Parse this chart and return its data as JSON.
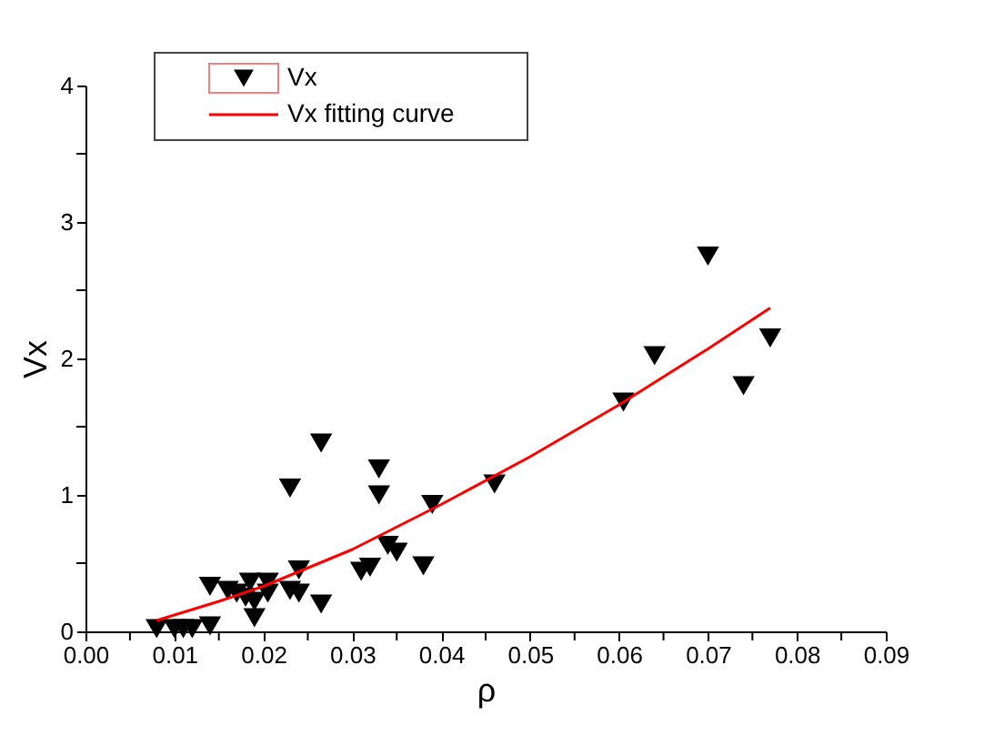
{
  "chart_data": {
    "type": "scatter",
    "xlabel": "ρ",
    "ylabel": "Vx",
    "xlim": [
      0,
      0.09
    ],
    "ylim": [
      0,
      4
    ],
    "xticks": [
      {
        "value": 0,
        "label": "0.00"
      },
      {
        "value": 0.005,
        "label": null
      },
      {
        "value": 0.01,
        "label": "0.01"
      },
      {
        "value": 0.015,
        "label": null
      },
      {
        "value": 0.02,
        "label": "0.02"
      },
      {
        "value": 0.025,
        "label": null
      },
      {
        "value": 0.03,
        "label": "0.03"
      },
      {
        "value": 0.035,
        "label": null
      },
      {
        "value": 0.04,
        "label": "0.04"
      },
      {
        "value": 0.045,
        "label": null
      },
      {
        "value": 0.05,
        "label": "0.05"
      },
      {
        "value": 0.055,
        "label": null
      },
      {
        "value": 0.06,
        "label": "0.06"
      },
      {
        "value": 0.065,
        "label": null
      },
      {
        "value": 0.07,
        "label": "0.07"
      },
      {
        "value": 0.075,
        "label": null
      },
      {
        "value": 0.08,
        "label": "0.08"
      },
      {
        "value": 0.085,
        "label": null
      },
      {
        "value": 0.09,
        "label": "0.09"
      }
    ],
    "yticks": [
      0,
      {
        "value": 0.5,
        "label": null
      },
      1,
      {
        "value": 1.5,
        "label": null
      },
      2,
      {
        "value": 2.5,
        "label": null
      },
      3,
      {
        "value": 3.5,
        "label": null
      },
      4
    ],
    "grid": false,
    "legend": "top left",
    "series": [
      {
        "name": "Vx",
        "type": "scatter",
        "marker": "triangle",
        "color": "#000000",
        "x": [
          0.008,
          0.01,
          0.011,
          0.012,
          0.014,
          0.014,
          0.016,
          0.017,
          0.018,
          0.019,
          0.0185,
          0.019,
          0.0205,
          0.0205,
          0.023,
          0.023,
          0.024,
          0.024,
          0.0265,
          0.0265,
          0.031,
          0.032,
          0.033,
          0.033,
          0.034,
          0.035,
          0.038,
          0.039,
          0.046,
          0.0605,
          0.064,
          0.07,
          0.074,
          0.077
        ],
        "values": [
          0.02,
          0.02,
          0.02,
          0.02,
          0.04,
          0.33,
          0.3,
          0.28,
          0.25,
          0.1,
          0.36,
          0.22,
          0.28,
          0.36,
          1.05,
          0.3,
          0.28,
          0.45,
          0.2,
          1.38,
          0.44,
          0.47,
          1.19,
          1.0,
          0.63,
          0.58,
          0.48,
          0.93,
          1.08,
          1.68,
          2.02,
          2.75,
          1.8,
          2.15
        ]
      },
      {
        "name": "Vx fitting curve",
        "type": "line",
        "line_style": "solid",
        "color": "#ff0000",
        "x": [
          0.008,
          0.015,
          0.02,
          0.03,
          0.04,
          0.05,
          0.06,
          0.07,
          0.077
        ],
        "values": [
          0.08,
          0.22,
          0.33,
          0.6,
          0.93,
          1.28,
          1.66,
          2.07,
          2.37
        ]
      }
    ]
  }
}
